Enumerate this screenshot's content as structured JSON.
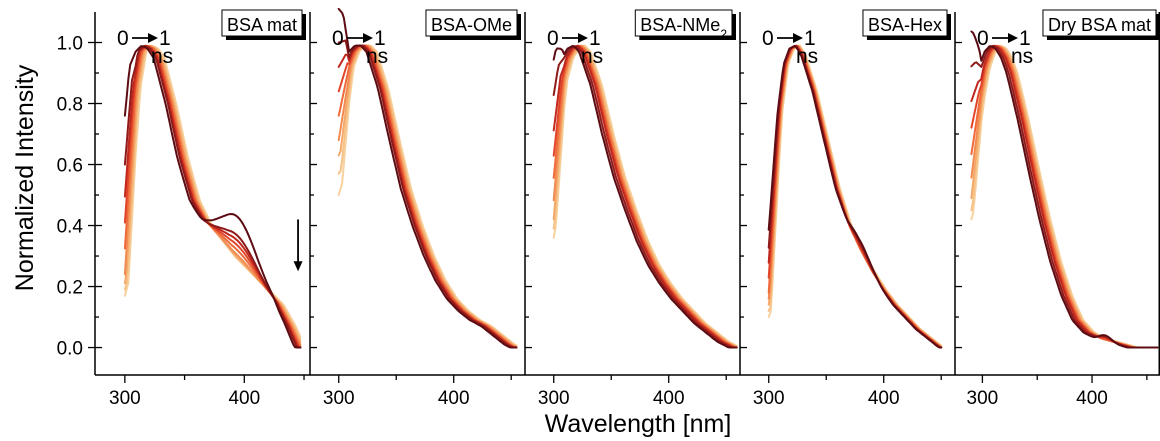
{
  "figure": {
    "ylabel": "Normalized Intensity",
    "xlabel": "Wavelength [nm]"
  },
  "shared": {
    "ylim": [
      -0.09,
      1.1
    ],
    "yticks": [
      0.0,
      0.2,
      0.4,
      0.6,
      0.8,
      1.0
    ],
    "ytick_labels": [
      "0.0",
      "0.2",
      "0.4",
      "0.6",
      "0.8",
      "1.0"
    ],
    "xticks": [
      300,
      400
    ],
    "xtick_labels": [
      "300",
      "400"
    ],
    "annotation": {
      "start": "0",
      "end": "1",
      "unit": "ns"
    },
    "series_colors": [
      "#5c0c12",
      "#8e1a1a",
      "#c0281e",
      "#e0452a",
      "#ee6a3a",
      "#f28b52",
      "#f4a96b",
      "#f6c287",
      "#f7d19e"
    ]
  },
  "chart_data": [
    {
      "type": "line",
      "title": "BSA mat",
      "xlim": [
        275,
        455
      ],
      "grid": false,
      "series_count": 9,
      "base": {
        "x": [
          300,
          310,
          315,
          320,
          325,
          330,
          340,
          350,
          360,
          370,
          380,
          390,
          400,
          410,
          420,
          430,
          440,
          448
        ],
        "y": [
          0.3,
          0.85,
          0.97,
          0.99,
          0.98,
          0.95,
          0.8,
          0.62,
          0.48,
          0.4,
          0.35,
          0.3,
          0.26,
          0.22,
          0.18,
          0.14,
          0.07,
          0.0
        ]
      },
      "series_variation": {
        "peak_shift_nm": [
          -6,
          -4,
          -3,
          -2,
          -1,
          0,
          1,
          2,
          3
        ],
        "bump": {
          "center": 395,
          "width": 22,
          "amplitude": [
            0.17,
            0.1,
            0.08,
            0.06,
            0.04,
            0.02,
            0.01,
            0.0,
            0.0
          ]
        },
        "start_y": [
          0.43,
          0.38,
          0.33,
          0.3,
          0.27,
          0.24,
          0.21,
          0.19,
          0.17
        ]
      },
      "arrow": {
        "x": 445,
        "y_from": 0.42,
        "y_to": 0.25
      }
    },
    {
      "type": "line",
      "title": "BSA-OMe",
      "xlim": [
        275,
        462
      ],
      "grid": false,
      "series_count": 9,
      "base": {
        "x": [
          300,
          310,
          315,
          320,
          325,
          330,
          340,
          350,
          360,
          370,
          380,
          390,
          400,
          410,
          420,
          430,
          440,
          450,
          455
        ],
        "y": [
          0.62,
          0.92,
          0.97,
          0.99,
          0.99,
          0.97,
          0.85,
          0.68,
          0.52,
          0.4,
          0.3,
          0.22,
          0.16,
          0.12,
          0.09,
          0.07,
          0.04,
          0.01,
          0.0
        ]
      },
      "series_variation": {
        "peak_shift_nm": [
          -6,
          -4,
          -3,
          -2,
          -1,
          0,
          1,
          2,
          3
        ],
        "start_y": [
          0.93,
          0.88,
          0.83,
          0.78,
          0.73,
          0.68,
          0.63,
          0.57,
          0.5
        ]
      }
    },
    {
      "type": "line",
      "title": "BSA-NMe",
      "title_sub": "2",
      "xlim": [
        275,
        462
      ],
      "grid": false,
      "series_count": 9,
      "base": {
        "x": [
          300,
          310,
          315,
          320,
          325,
          330,
          340,
          350,
          360,
          370,
          380,
          390,
          400,
          410,
          420,
          430,
          440,
          450,
          460
        ],
        "y": [
          0.55,
          0.88,
          0.95,
          0.98,
          0.99,
          0.97,
          0.86,
          0.7,
          0.56,
          0.45,
          0.35,
          0.27,
          0.21,
          0.16,
          0.12,
          0.08,
          0.05,
          0.02,
          0.0
        ]
      },
      "series_variation": {
        "peak_shift_nm": [
          -8,
          -6,
          -4,
          -3,
          -2,
          -1,
          0,
          1,
          2
        ],
        "start_y": [
          0.68,
          0.63,
          0.58,
          0.53,
          0.49,
          0.45,
          0.42,
          0.39,
          0.36
        ]
      }
    },
    {
      "type": "line",
      "title": "BSA-Hex",
      "xlim": [
        275,
        462
      ],
      "grid": false,
      "series_count": 9,
      "base": {
        "x": [
          300,
          310,
          315,
          320,
          325,
          330,
          340,
          350,
          360,
          370,
          380,
          390,
          400,
          410,
          420,
          430,
          440,
          450
        ],
        "y": [
          0.2,
          0.78,
          0.93,
          0.98,
          0.99,
          0.96,
          0.84,
          0.68,
          0.52,
          0.4,
          0.32,
          0.25,
          0.19,
          0.14,
          0.1,
          0.06,
          0.03,
          0.0
        ]
      },
      "series_variation": {
        "peak_shift_nm": [
          -2,
          -1.5,
          -1,
          -0.5,
          0,
          0.5,
          1,
          1.5,
          2
        ],
        "bump": {
          "center": 380,
          "width": 14,
          "amplitude": [
            0.04,
            0.03,
            0.02,
            0.01,
            0.0,
            0.0,
            0.0,
            0.0,
            0.0
          ]
        },
        "start_y": [
          0.27,
          0.24,
          0.22,
          0.2,
          0.18,
          0.16,
          0.14,
          0.12,
          0.1
        ]
      }
    },
    {
      "type": "line",
      "title": "Dry BSA mat",
      "xlim": [
        275,
        462
      ],
      "grid": false,
      "series_count": 9,
      "base": {
        "x": [
          290,
          300,
          305,
          310,
          315,
          320,
          325,
          330,
          340,
          350,
          360,
          370,
          380,
          390,
          400,
          410,
          420,
          430,
          440,
          460
        ],
        "y": [
          0.55,
          0.82,
          0.92,
          0.97,
          0.99,
          0.98,
          0.95,
          0.9,
          0.75,
          0.58,
          0.42,
          0.28,
          0.17,
          0.09,
          0.05,
          0.03,
          0.02,
          0.01,
          0.0,
          0.0
        ]
      },
      "series_variation": {
        "peak_shift_nm": [
          -8,
          -6,
          -4,
          -3,
          -2,
          -1,
          0,
          1,
          2
        ],
        "bump": {
          "center": 412,
          "width": 8,
          "amplitude": [
            0.02,
            0.015,
            0.01,
            0.005,
            0.0,
            0.0,
            0.0,
            0.0,
            0.0
          ]
        },
        "start_y": [
          0.82,
          0.76,
          0.7,
          0.64,
          0.58,
          0.53,
          0.49,
          0.45,
          0.42
        ]
      }
    }
  ]
}
